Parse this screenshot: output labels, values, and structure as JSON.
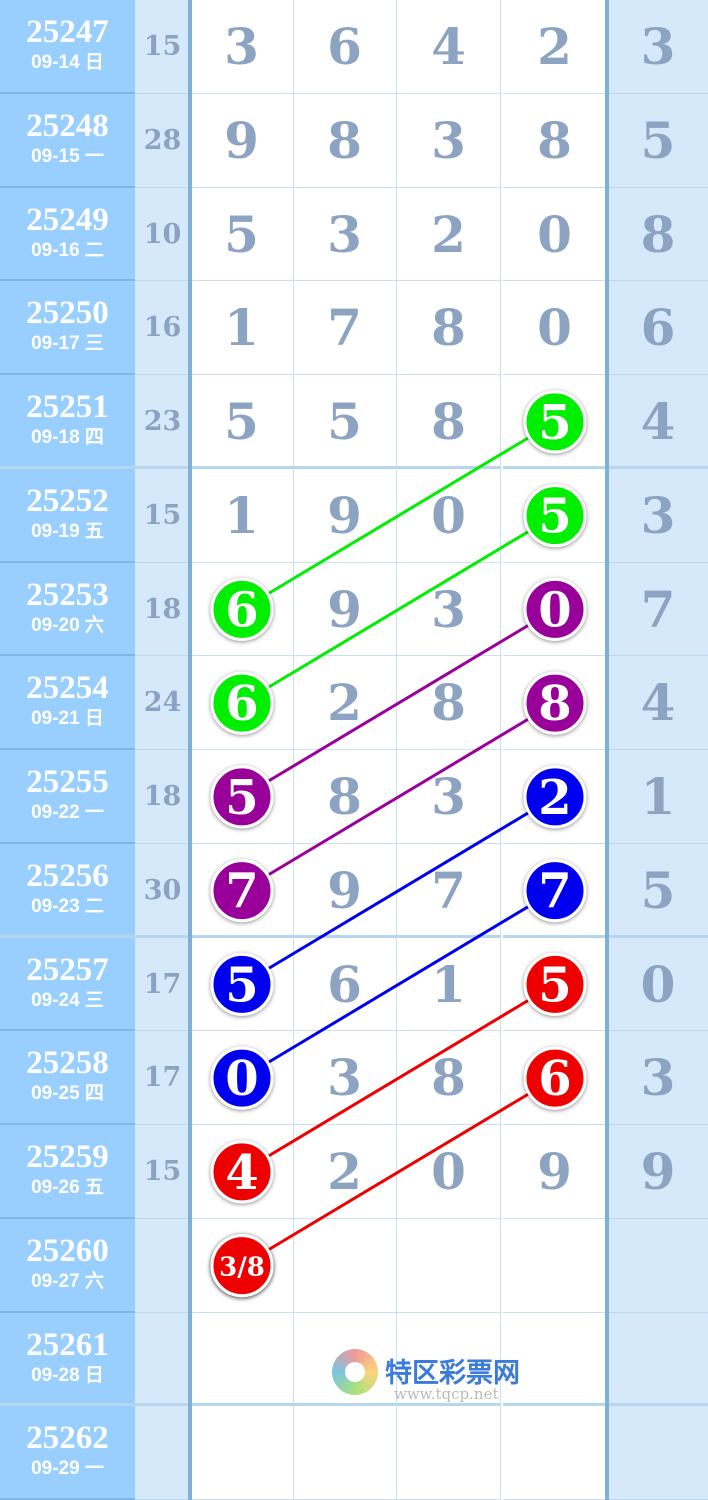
{
  "watermark": {
    "name": "特区彩票网",
    "url": "www.tqcp.net"
  },
  "rows": [
    {
      "issue": "25247",
      "date": "09-14 日",
      "sum": "15",
      "digits": [
        "3",
        "6",
        "4",
        "2",
        "3"
      ]
    },
    {
      "issue": "25248",
      "date": "09-15 一",
      "sum": "28",
      "digits": [
        "9",
        "8",
        "3",
        "8",
        "5"
      ]
    },
    {
      "issue": "25249",
      "date": "09-16 二",
      "sum": "10",
      "digits": [
        "5",
        "3",
        "2",
        "0",
        "8"
      ]
    },
    {
      "issue": "25250",
      "date": "09-17 三",
      "sum": "16",
      "digits": [
        "1",
        "7",
        "8",
        "0",
        "6"
      ]
    },
    {
      "issue": "25251",
      "date": "09-18 四",
      "sum": "23",
      "digits": [
        "5",
        "5",
        "8",
        "5",
        "4"
      ]
    },
    {
      "issue": "25252",
      "date": "09-19 五",
      "sum": "15",
      "digits": [
        "1",
        "9",
        "0",
        "5",
        "3"
      ]
    },
    {
      "issue": "25253",
      "date": "09-20 六",
      "sum": "18",
      "digits": [
        "6",
        "9",
        "3",
        "0",
        "7"
      ]
    },
    {
      "issue": "25254",
      "date": "09-21 日",
      "sum": "24",
      "digits": [
        "6",
        "2",
        "8",
        "8",
        "4"
      ]
    },
    {
      "issue": "25255",
      "date": "09-22 一",
      "sum": "18",
      "digits": [
        "5",
        "8",
        "3",
        "2",
        "1"
      ]
    },
    {
      "issue": "25256",
      "date": "09-23 二",
      "sum": "30",
      "digits": [
        "7",
        "9",
        "7",
        "7",
        "5"
      ]
    },
    {
      "issue": "25257",
      "date": "09-24 三",
      "sum": "17",
      "digits": [
        "5",
        "6",
        "1",
        "5",
        "0"
      ]
    },
    {
      "issue": "25258",
      "date": "09-25 四",
      "sum": "17",
      "digits": [
        "0",
        "3",
        "8",
        "6",
        "3"
      ]
    },
    {
      "issue": "25259",
      "date": "09-26 五",
      "sum": "15",
      "digits": [
        "4",
        "2",
        "0",
        "9",
        "9"
      ]
    },
    {
      "issue": "25260",
      "date": "09-27 六",
      "sum": "",
      "digits": [
        "3/8",
        "",
        "",
        "",
        ""
      ]
    },
    {
      "issue": "25261",
      "date": "09-28 日",
      "sum": "",
      "digits": [
        "",
        "",
        "",
        "",
        ""
      ]
    },
    {
      "issue": "25262",
      "date": "09-29 一",
      "sum": "",
      "digits": [
        "",
        "",
        "",
        "",
        ""
      ]
    }
  ],
  "links": [
    {
      "from": [
        4,
        3
      ],
      "to": [
        6,
        0
      ],
      "color": "#00ee00"
    },
    {
      "from": [
        5,
        3
      ],
      "to": [
        7,
        0
      ],
      "color": "#00ee00"
    },
    {
      "from": [
        6,
        3
      ],
      "to": [
        8,
        0
      ],
      "color": "#990099"
    },
    {
      "from": [
        7,
        3
      ],
      "to": [
        9,
        0
      ],
      "color": "#990099"
    },
    {
      "from": [
        8,
        3
      ],
      "to": [
        10,
        0
      ],
      "color": "#0000ee"
    },
    {
      "from": [
        9,
        3
      ],
      "to": [
        11,
        0
      ],
      "color": "#0000ee"
    },
    {
      "from": [
        10,
        3
      ],
      "to": [
        12,
        0
      ],
      "color": "#ee0000"
    },
    {
      "from": [
        11,
        3
      ],
      "to": [
        13,
        0
      ],
      "color": "#ee0000"
    }
  ]
}
